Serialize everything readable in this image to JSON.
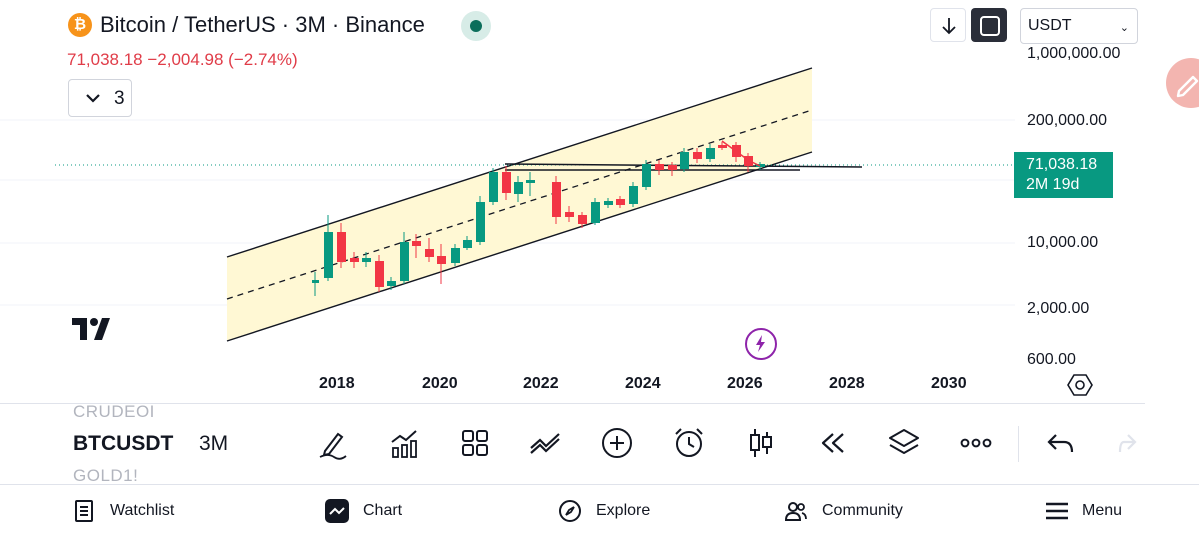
{
  "header": {
    "coin_symbol": "₿",
    "title": "Bitcoin / TetherUS · 3M · Binance",
    "price_change": "71,038.18  −2,004.98 (−2.74%)",
    "indicator_count": "3",
    "currency": "USDT"
  },
  "chart_data": {
    "type": "candlestick",
    "y_scale": "log",
    "y_ticks": [
      "1,000,000.00",
      "200,000.00",
      "10,000.00",
      "2,000.00",
      "600.00"
    ],
    "x_ticks": [
      "2018",
      "2020",
      "2022",
      "2024",
      "2026",
      "2028",
      "2030"
    ],
    "current_price": "71,038.18",
    "countdown": "2M 19d",
    "colors": {
      "up": "#089981",
      "down": "#f23645",
      "channel_fill": "#fff8d4",
      "price_line": "#089981"
    }
  },
  "toolbar": {
    "symbol_above": "CRUDEOI",
    "symbol": "BTCUSDT",
    "symbol_below": "GOLD1!",
    "interval": "3M"
  },
  "nav": {
    "watchlist": "Watchlist",
    "chart": "Chart",
    "explore": "Explore",
    "community": "Community",
    "menu": "Menu"
  }
}
